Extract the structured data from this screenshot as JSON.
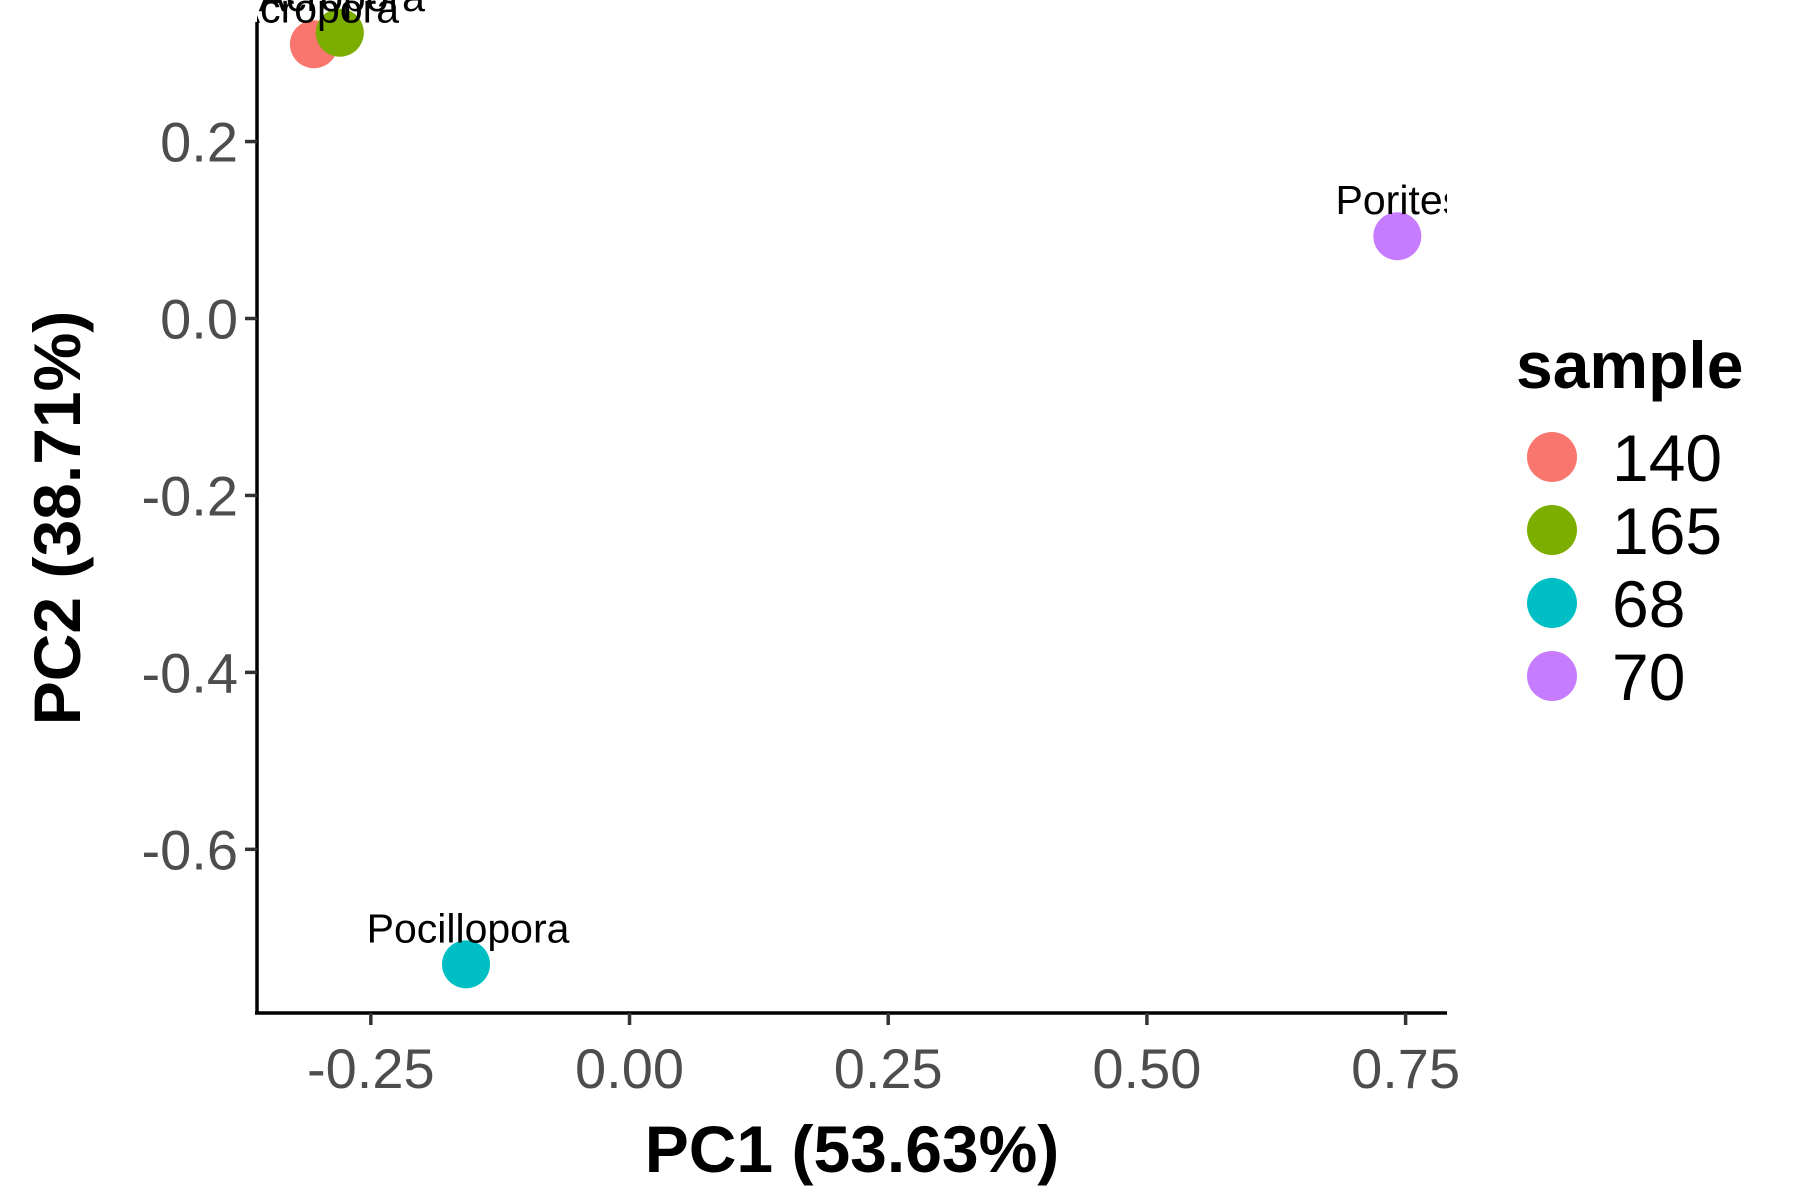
{
  "chart_data": {
    "type": "scatter",
    "xlabel": "PC1 (53.63%)",
    "ylabel": "PC2 (38.71%)",
    "xlim": [
      -0.36,
      0.79
    ],
    "ylim": [
      -0.785,
      0.36
    ],
    "xticks": [
      -0.25,
      0.0,
      0.25,
      0.5,
      0.75
    ],
    "xtick_labels": [
      "-0.25",
      "0.00",
      "0.25",
      "0.50",
      "0.75"
    ],
    "yticks": [
      0.2,
      0.0,
      -0.2,
      -0.4,
      -0.6
    ],
    "ytick_labels": [
      "0.2",
      "0.0",
      "-0.2",
      "-0.4",
      "-0.6"
    ],
    "grid": false,
    "legend": {
      "title": "sample",
      "placement": "right",
      "entries": [
        {
          "label": "140",
          "color": "#F8766D"
        },
        {
          "label": "165",
          "color": "#7CAE00"
        },
        {
          "label": "68",
          "color": "#00BFC4"
        },
        {
          "label": "70",
          "color": "#C77CFF"
        }
      ]
    },
    "points": [
      {
        "sample": "140",
        "x": -0.305,
        "y": 0.31,
        "label": "Acropora",
        "color": "#F8766D"
      },
      {
        "sample": "165",
        "x": -0.28,
        "y": 0.323,
        "label": "Acropora",
        "color": "#7CAE00"
      },
      {
        "sample": "68",
        "x": -0.158,
        "y": -0.73,
        "label": "Pocillopora",
        "color": "#00BFC4"
      },
      {
        "sample": "70",
        "x": 0.742,
        "y": 0.093,
        "label": "Porites",
        "color": "#C77CFF"
      }
    ]
  }
}
